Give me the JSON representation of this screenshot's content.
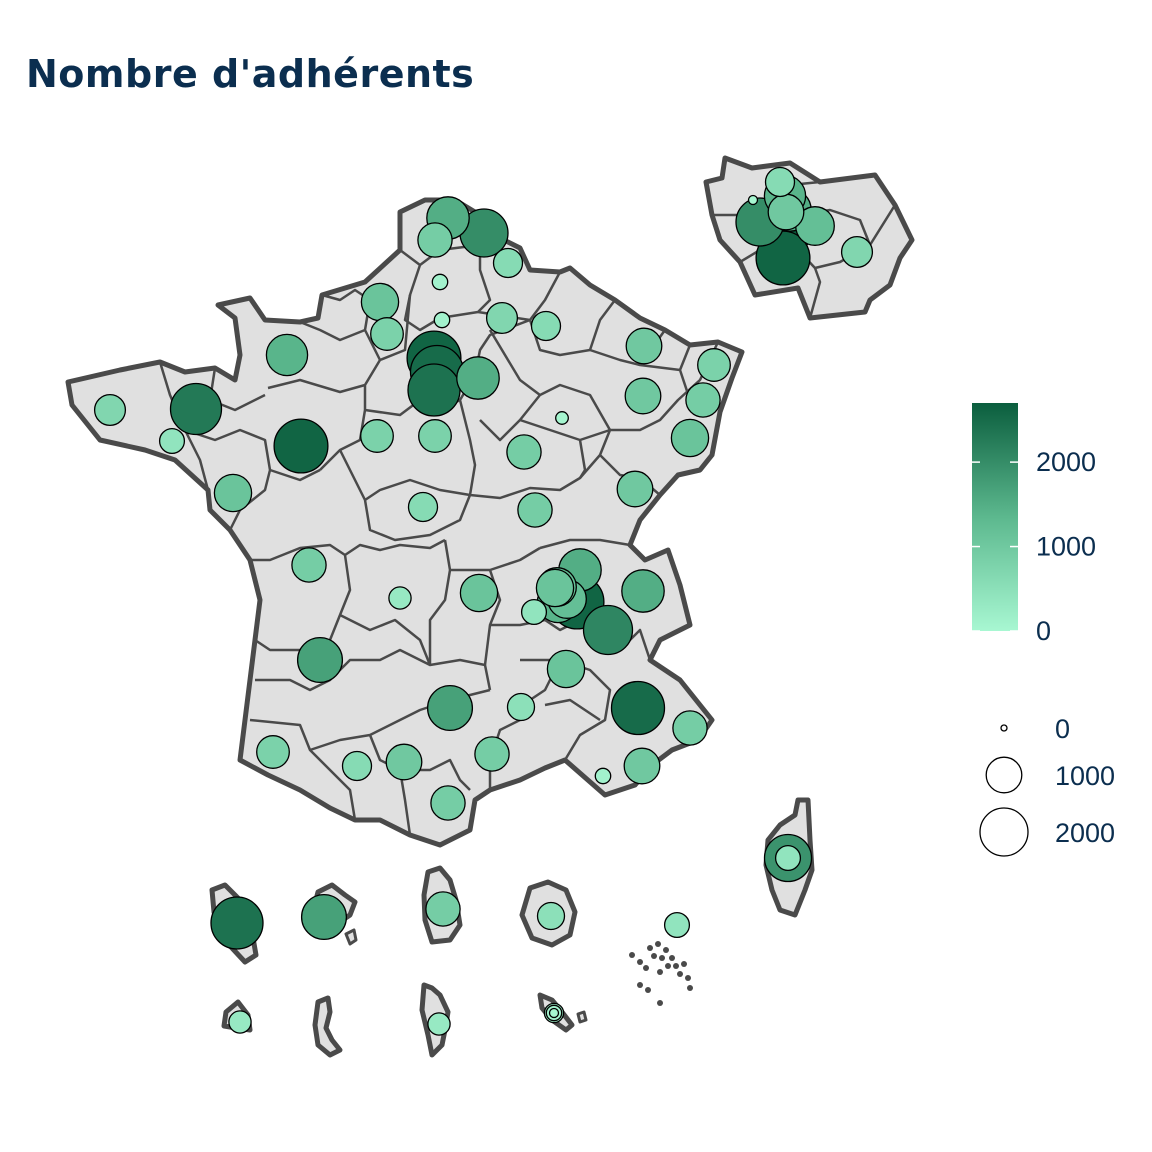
{
  "title": "Nombre d'adhérents",
  "colors": {
    "region_fill": "#e0e0e0",
    "region_stroke": "#4a4a4a",
    "scale_low": "#a8f7d2",
    "scale_mid": "#5cb88e",
    "scale_high": "#0b5e3e",
    "text": "#0b2e4f"
  },
  "legend": {
    "color": {
      "min": 0,
      "max": 2700,
      "breaks": [
        {
          "value": 0,
          "label": "0"
        },
        {
          "value": 1000,
          "label": "1000"
        },
        {
          "value": 2000,
          "label": "2000"
        }
      ]
    },
    "size": {
      "breaks": [
        {
          "value": 0,
          "label": "0"
        },
        {
          "value": 1000,
          "label": "1000"
        },
        {
          "value": 2000,
          "label": "2000"
        }
      ]
    }
  },
  "points": [
    {
      "value": 1500
    },
    {
      "value": 2000
    },
    {
      "value": 900
    },
    {
      "value": 600
    },
    {
      "value": 100
    },
    {
      "value": 1100
    },
    {
      "value": 800
    },
    {
      "value": 100
    },
    {
      "value": 700
    },
    {
      "value": 600
    },
    {
      "value": 2600
    },
    {
      "value": 2500
    },
    {
      "value": 2400
    },
    {
      "value": 1500
    },
    {
      "value": 1400
    },
    {
      "value": 700
    },
    {
      "value": 2300
    },
    {
      "value": 400
    },
    {
      "value": 800
    },
    {
      "value": 2600
    },
    {
      "value": 1000
    },
    {
      "value": 800
    },
    {
      "value": 1000
    },
    {
      "value": 900
    },
    {
      "value": 1100
    },
    {
      "value": 900
    },
    {
      "value": 1000
    },
    {
      "value": 800
    },
    {
      "value": 1100
    },
    {
      "value": 600
    },
    {
      "value": 50
    },
    {
      "value": 900
    },
    {
      "value": 900
    },
    {
      "value": 300
    },
    {
      "value": 400
    },
    {
      "value": 1500
    },
    {
      "value": 1100
    },
    {
      "value": 1100
    },
    {
      "value": 1400
    },
    {
      "value": 1200
    },
    {
      "value": 2600
    },
    {
      "value": 1200
    },
    {
      "value": 1500
    },
    {
      "value": 2100
    },
    {
      "value": 1100
    },
    {
      "value": 2500
    },
    {
      "value": 900
    },
    {
      "value": 1700
    },
    {
      "value": 500
    },
    {
      "value": 1700
    },
    {
      "value": 800
    },
    {
      "value": 600
    },
    {
      "value": 1000
    },
    {
      "value": 900
    },
    {
      "value": 1000
    },
    {
      "value": 100
    },
    {
      "value": 900
    },
    {
      "value": 400
    },
    {
      "value": 1900
    },
    {
      "value": 600
    },
    {
      "value": 10
    },
    {
      "value": 2000
    },
    {
      "value": 1500
    },
    {
      "value": 1200
    },
    {
      "value": 700
    },
    {
      "value": 1400
    },
    {
      "value": 1000
    },
    {
      "value": 2700
    },
    {
      "value": 2600
    },
    {
      "value": 2400
    },
    {
      "value": 1700
    },
    {
      "value": 900
    },
    {
      "value": 500
    },
    {
      "value": 400
    },
    {
      "value": 300
    },
    {
      "value": 300
    },
    {
      "value": 10
    },
    {
      "value": 200
    },
    {
      "value": 100
    }
  ]
}
